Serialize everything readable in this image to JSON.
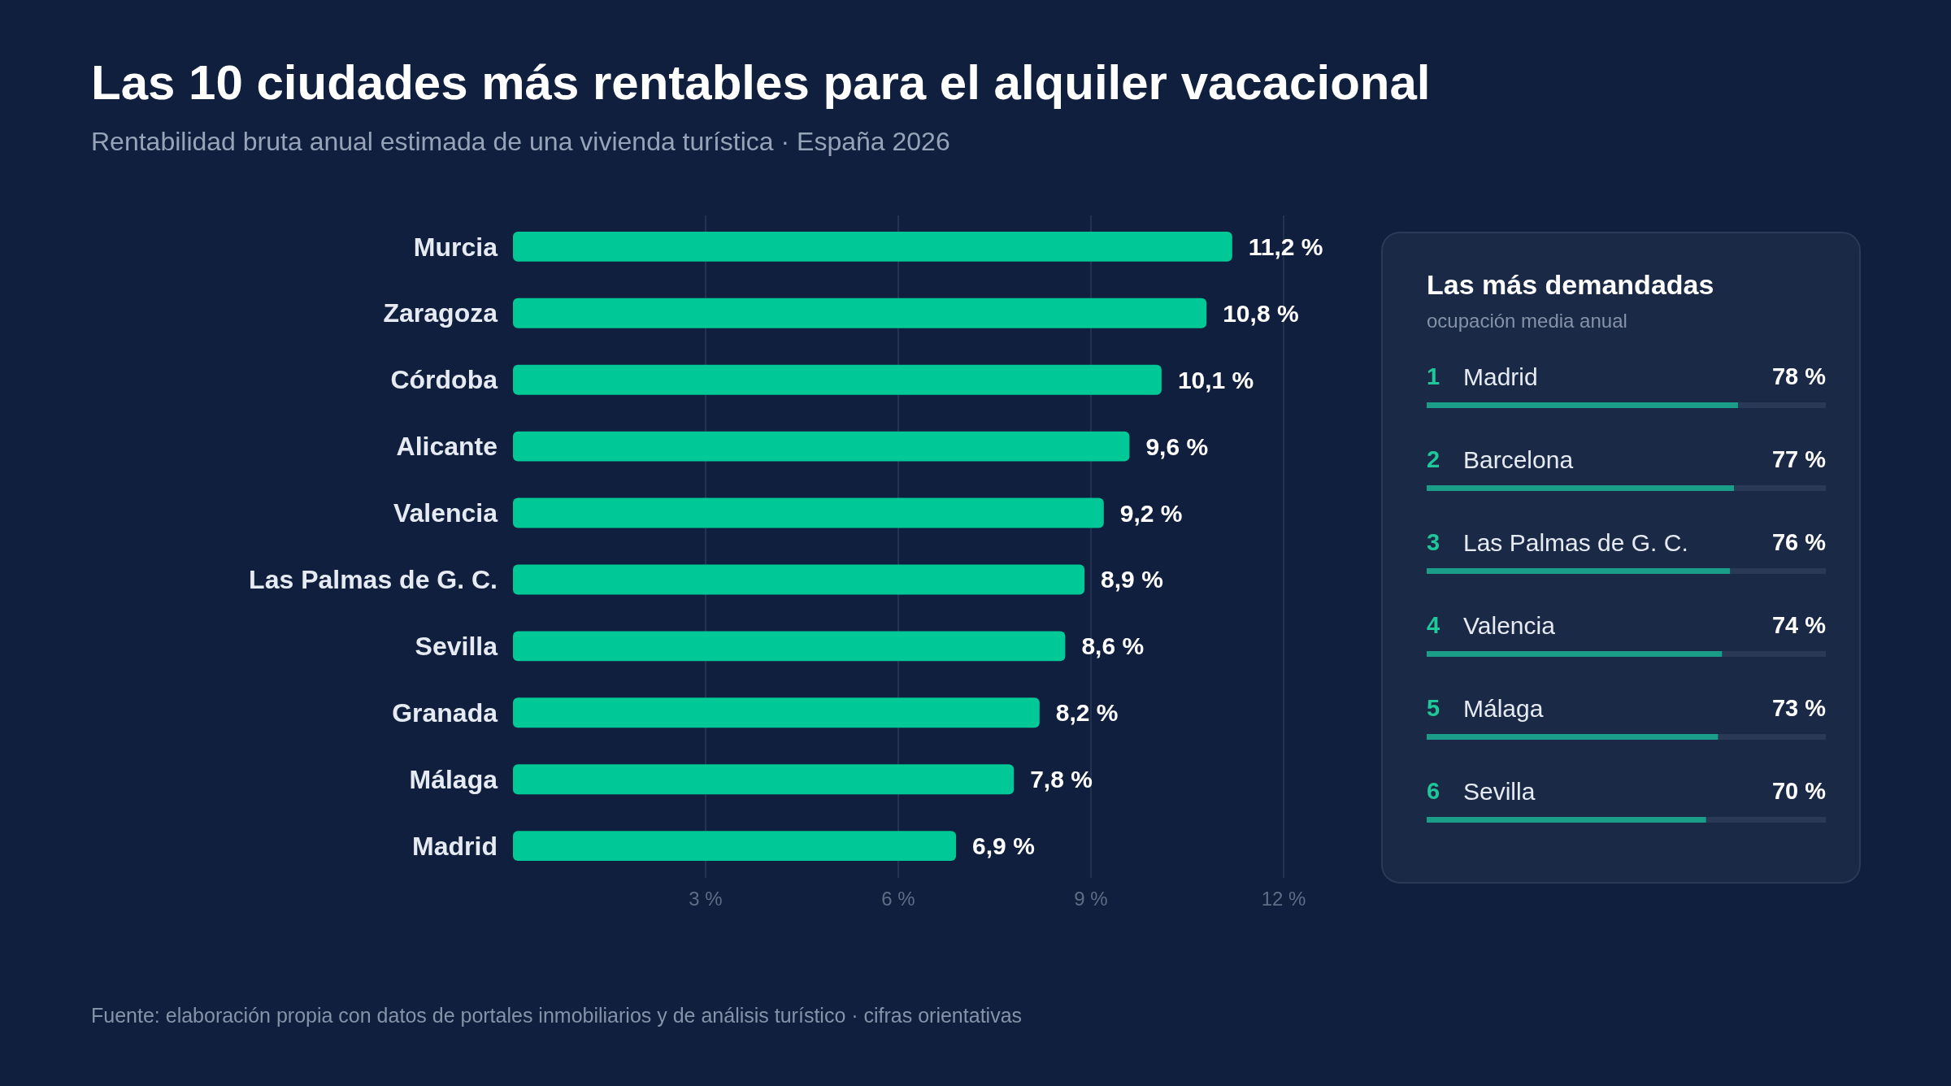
{
  "chart_data": [
    {
      "type": "bar",
      "orientation": "horizontal",
      "title": "Las 10 ciudades más rentables para el alquiler vacacional",
      "subtitle": "Rentabilidad bruta anual estimada de una vivienda turística · España 2026",
      "categories": [
        "Murcia",
        "Zaragoza",
        "Córdoba",
        "Alicante",
        "Valencia",
        "Las Palmas de G. C.",
        "Sevilla",
        "Granada",
        "Málaga",
        "Madrid"
      ],
      "values": [
        11.2,
        10.8,
        10.1,
        9.6,
        9.2,
        8.9,
        8.6,
        8.2,
        7.8,
        6.9
      ],
      "value_labels": [
        "11,2 %",
        "10,8 %",
        "10,1 %",
        "9,6 %",
        "9,2 %",
        "8,9 %",
        "8,6 %",
        "8,2 %",
        "7,8 %",
        "6,9 %"
      ],
      "color": "#00c896",
      "xlim": [
        0,
        12
      ],
      "xticks": [
        {
          "value": 3,
          "label": "3 %"
        },
        {
          "value": 6,
          "label": "6 %"
        },
        {
          "value": 9,
          "label": "9 %"
        },
        {
          "value": 12,
          "label": "12 %"
        }
      ],
      "grid": "x",
      "annotations": [
        "Fuente: elaboración propia con datos de portales inmobiliarios y de análisis turístico · cifras orientativas"
      ]
    },
    {
      "type": "bar",
      "orientation": "horizontal",
      "title": "Las más demandadas",
      "subtitle": "ocupación media anual",
      "categories": [
        "Madrid",
        "Barcelona",
        "Las Palmas de G. C.",
        "Valencia",
        "Málaga",
        "Sevilla"
      ],
      "values": [
        78,
        77,
        76,
        74,
        73,
        70
      ],
      "value_labels": [
        "78 %",
        "77 %",
        "76 %",
        "74 %",
        "73 %",
        "70 %"
      ],
      "color": "#1a9e8a",
      "xlim": [
        0,
        100
      ],
      "annotations": [
        "1",
        "2",
        "3",
        "4",
        "5",
        "6"
      ]
    }
  ]
}
